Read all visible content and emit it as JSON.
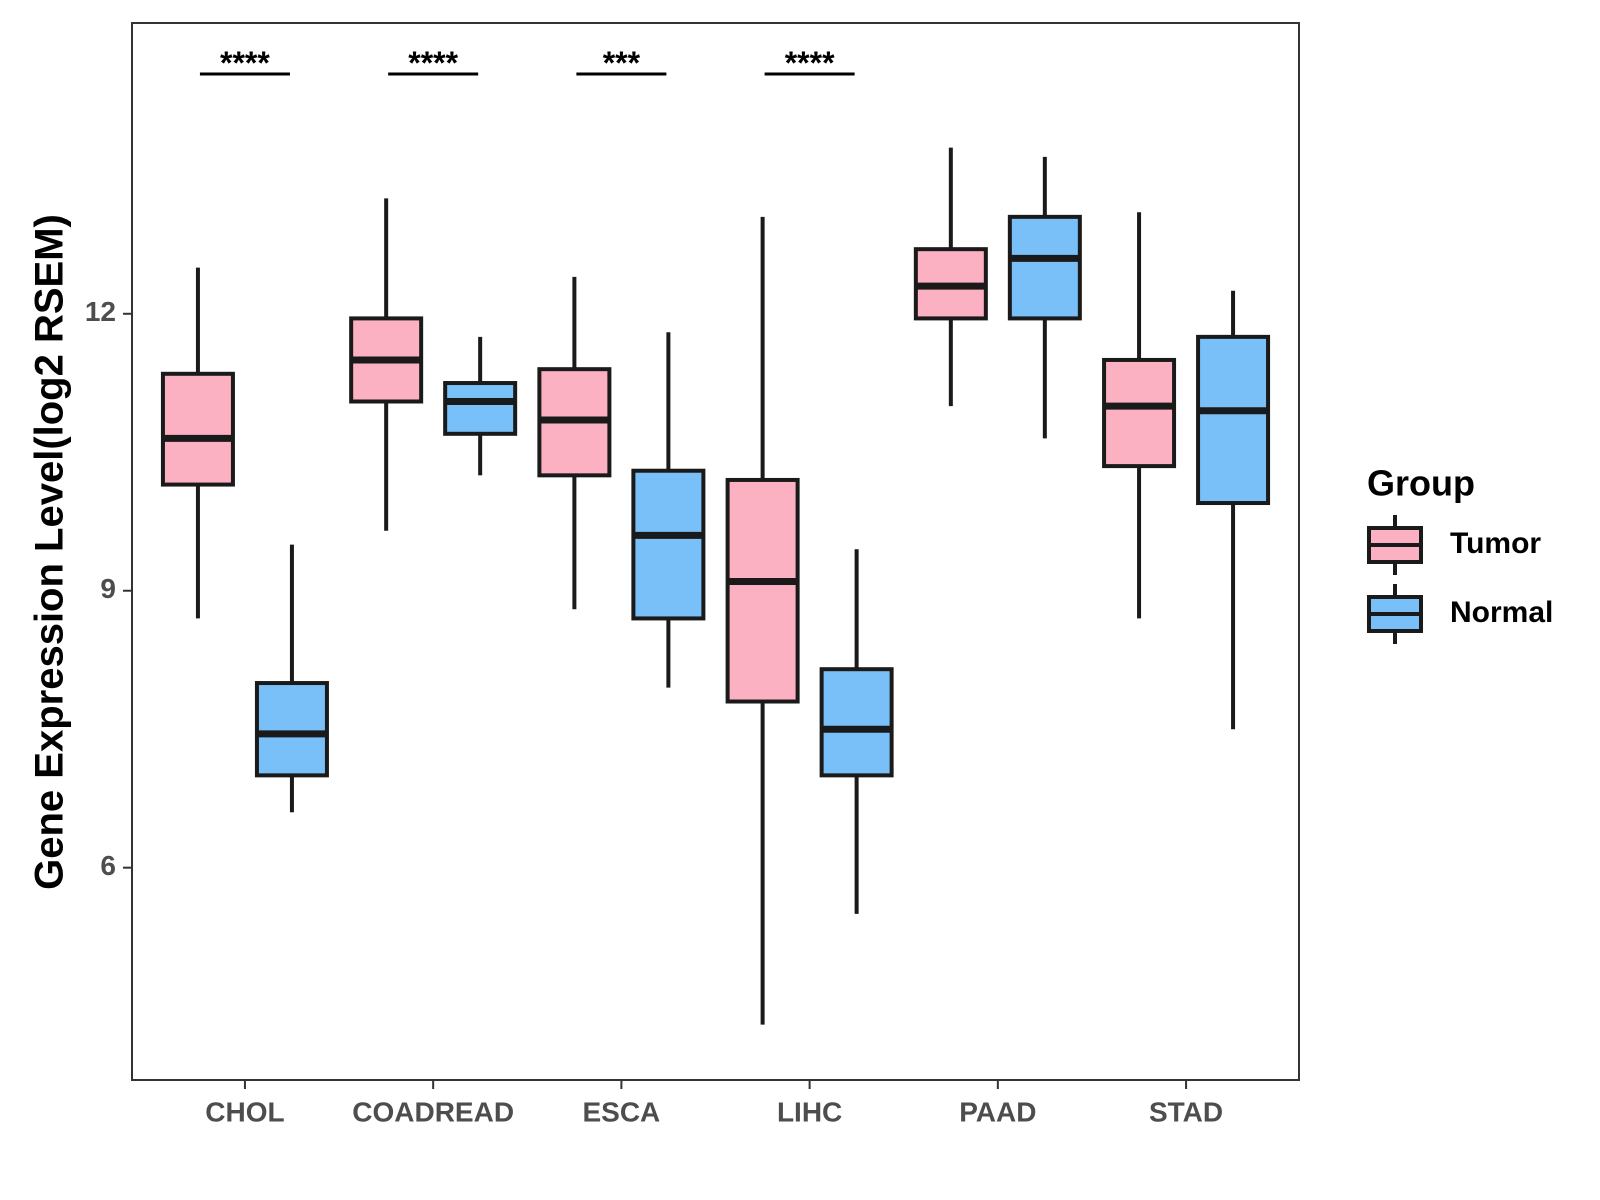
{
  "chart_data": {
    "type": "boxplot",
    "title": "",
    "xlabel": "",
    "ylabel": "Gene Expression Level(log2 RSEM)",
    "ylim": [
      3.7,
      15.15
    ],
    "yticks": [
      6,
      9,
      12
    ],
    "grid": false,
    "legend": {
      "title": "Group",
      "position": "right",
      "entries": [
        "Tumor",
        "Normal"
      ]
    },
    "categories": [
      "CHOL",
      "COADREAD",
      "ESCA",
      "LIHC",
      "PAAD",
      "STAD"
    ],
    "series": [
      {
        "name": "Tumor",
        "color": "#fbb1c2",
        "boxes": [
          {
            "min": 8.7,
            "q1": 10.15,
            "median": 10.65,
            "q3": 11.35,
            "max": 12.5
          },
          {
            "min": 9.65,
            "q1": 11.05,
            "median": 11.5,
            "q3": 11.95,
            "max": 13.25
          },
          {
            "min": 8.8,
            "q1": 10.25,
            "median": 10.85,
            "q3": 11.4,
            "max": 12.4
          },
          {
            "min": 4.3,
            "q1": 7.8,
            "median": 9.1,
            "q3": 10.2,
            "max": 13.05
          },
          {
            "min": 11.0,
            "q1": 11.95,
            "median": 12.3,
            "q3": 12.7,
            "max": 13.8
          },
          {
            "min": 8.7,
            "q1": 10.35,
            "median": 11.0,
            "q3": 11.5,
            "max": 13.1
          }
        ]
      },
      {
        "name": "Normal",
        "color": "#78c0f7",
        "boxes": [
          {
            "min": 6.6,
            "q1": 7.0,
            "median": 7.45,
            "q3": 8.0,
            "max": 9.5
          },
          {
            "min": 10.25,
            "q1": 10.7,
            "median": 11.05,
            "q3": 11.25,
            "max": 11.75
          },
          {
            "min": 7.95,
            "q1": 8.7,
            "median": 9.6,
            "q3": 10.3,
            "max": 11.8
          },
          {
            "min": 5.5,
            "q1": 7.0,
            "median": 7.5,
            "q3": 8.15,
            "max": 9.45
          },
          {
            "min": 10.65,
            "q1": 11.95,
            "median": 12.6,
            "q3": 13.05,
            "max": 13.7
          },
          {
            "min": 7.5,
            "q1": 9.95,
            "median": 10.95,
            "q3": 11.75,
            "max": 12.25
          }
        ]
      }
    ],
    "significance": [
      {
        "category": "CHOL",
        "label": "****"
      },
      {
        "category": "COADREAD",
        "label": "****"
      },
      {
        "category": "ESCA",
        "label": "***"
      },
      {
        "category": "LIHC",
        "label": "****"
      }
    ]
  }
}
